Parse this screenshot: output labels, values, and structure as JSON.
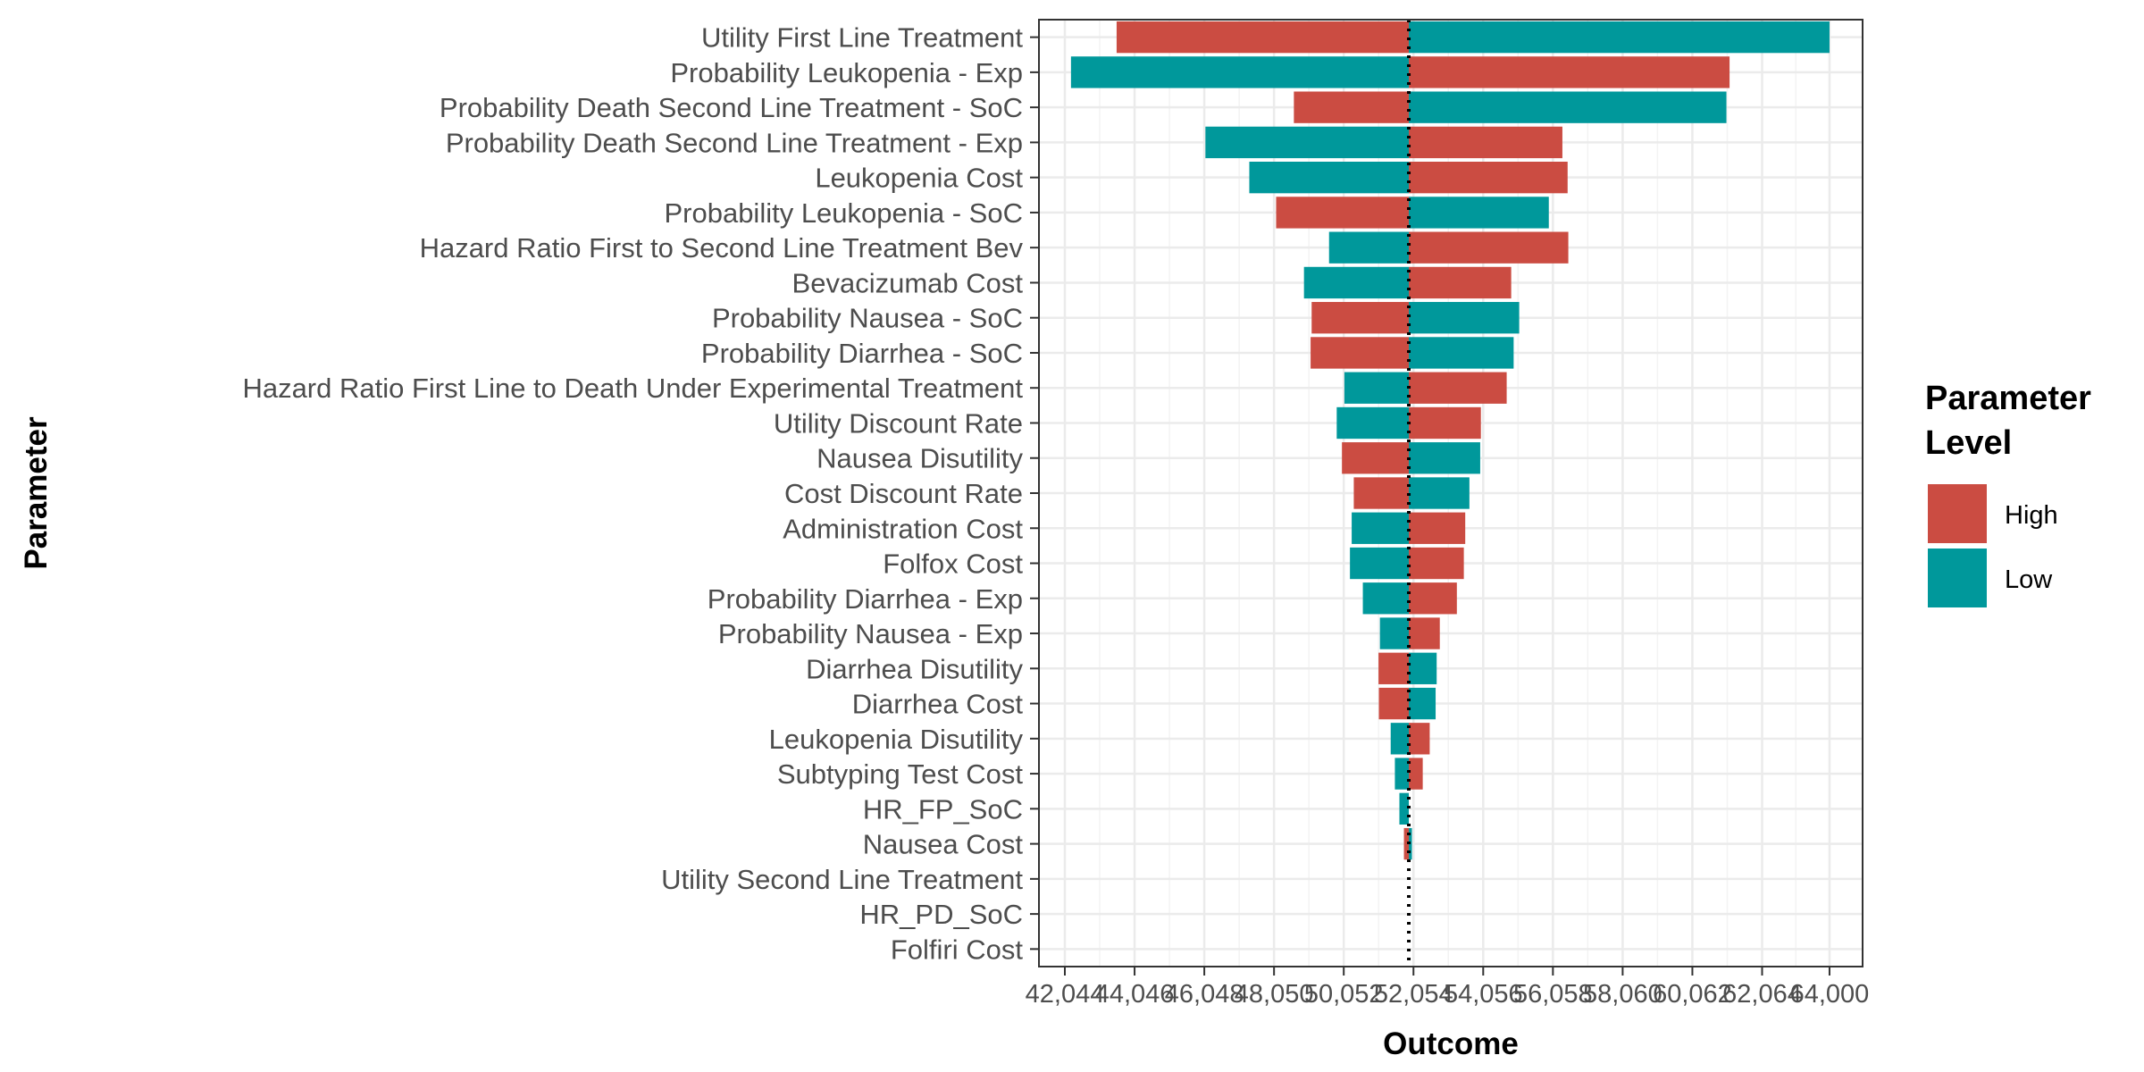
{
  "chart_data": {
    "type": "bar",
    "orientation": "horizontal",
    "xlabel": "Outcome",
    "ylabel": "Parameter",
    "xlim": [
      41300,
      64950
    ],
    "baseline": 51920,
    "baseline_style": "dotted",
    "grid": true,
    "x_ticks": [
      42044,
      44046,
      46048,
      48050,
      50052,
      52054,
      54056,
      56058,
      58060,
      60062,
      62064,
      64000
    ],
    "x_tick_labels": [
      "42,044",
      "44,046",
      "46,048",
      "48,050",
      "50,052",
      "52,054",
      "54,056",
      "56,058",
      "58,060",
      "60,062",
      "62,064",
      "64,000"
    ],
    "categories": [
      "Utility First Line Treatment",
      "Probability Leukopenia - Exp",
      "Probability Death Second Line Treatment - SoC",
      "Probability Death Second Line Treatment - Exp",
      "Leukopenia Cost",
      "Probability Leukopenia - SoC",
      "Hazard Ratio First to Second Line Treatment Bev",
      "Bevacizumab Cost",
      "Probability Nausea - SoC",
      "Probability Diarrhea - SoC",
      "Hazard Ratio First Line to Death Under Experimental Treatment",
      "Utility Discount Rate",
      "Nausea Disutility",
      "Cost Discount Rate",
      "Administration Cost",
      "Folfox Cost",
      "Probability Diarrhea - Exp",
      "Probability Nausea - Exp",
      "Diarrhea Disutility",
      "Diarrhea Cost",
      "Leukopenia Disutility",
      "Subtyping Test Cost",
      "HR_FP_SoC",
      "Nausea Cost",
      "Utility Second Line Treatment",
      "HR_PD_SoC",
      "Folfiri Cost"
    ],
    "series": [
      {
        "name": "High",
        "color": "#CB4C42",
        "values": [
          43530,
          61130,
          48620,
          56330,
          56480,
          48110,
          56500,
          54860,
          49130,
          49100,
          54730,
          53990,
          50000,
          50340,
          53540,
          53500,
          53300,
          52810,
          51050,
          51060,
          52520,
          52320,
          51920,
          51780,
          51920,
          51920,
          51920
        ]
      },
      {
        "name": "Low",
        "color": "#00989B",
        "values": [
          64000,
          42220,
          61040,
          46080,
          47340,
          55940,
          49630,
          48910,
          55090,
          54930,
          50070,
          49850,
          53970,
          53660,
          50280,
          50230,
          50600,
          51090,
          52720,
          52690,
          51400,
          51520,
          51650,
          52010,
          51920,
          51920,
          51920
        ]
      }
    ],
    "legend": {
      "title": "Parameter Level",
      "title_lines": [
        "Parameter",
        "Level"
      ],
      "position": "right",
      "entries": [
        "High",
        "Low"
      ]
    }
  }
}
